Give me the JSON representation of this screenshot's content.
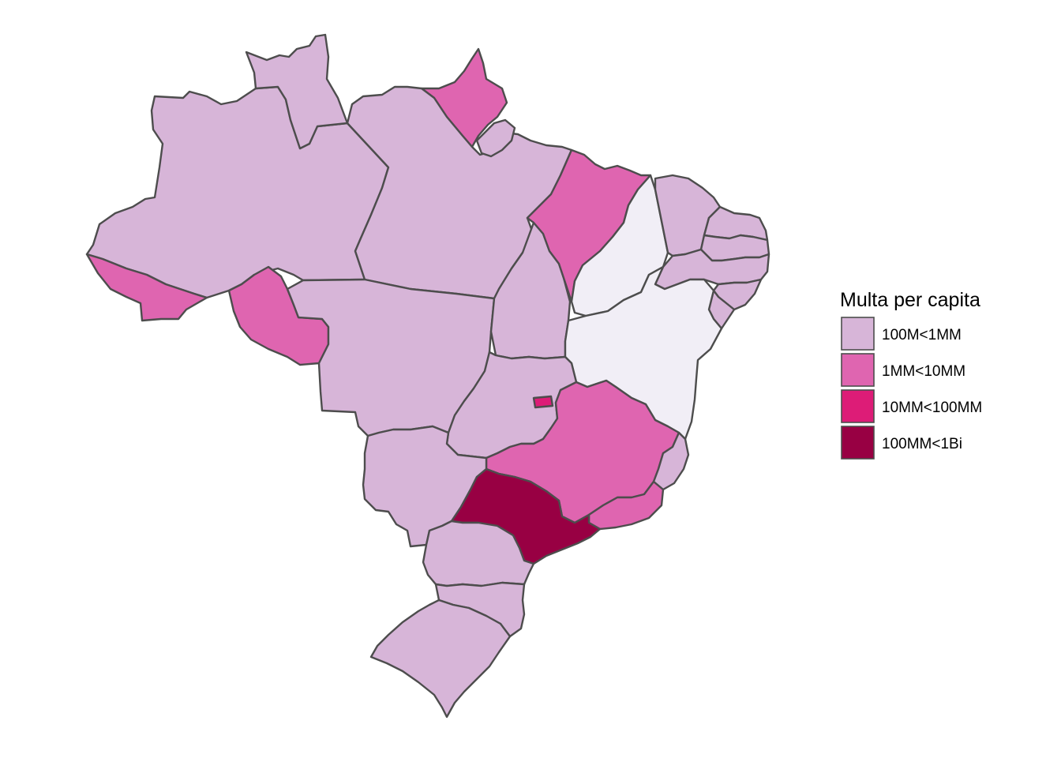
{
  "legend": {
    "title": "Multa per capita",
    "items": [
      {
        "label": "100M<1MM",
        "color": "#d7b5d8"
      },
      {
        "label": "1MM<10MM",
        "color": "#df65b0"
      },
      {
        "label": "10MM<100MM",
        "color": "#dd1c77"
      },
      {
        "label": "100MM<1Bi",
        "color": "#980043"
      }
    ]
  },
  "colors": {
    "no_class": "#f1eef6",
    "border": "#4d4d4d",
    "background": "#ffffff"
  },
  "regions": [
    {
      "id": "AM",
      "class": 0
    },
    {
      "id": "RR",
      "class": 0
    },
    {
      "id": "AP",
      "class": 1
    },
    {
      "id": "PA",
      "class": 0
    },
    {
      "id": "AC",
      "class": 1
    },
    {
      "id": "RO",
      "class": 1
    },
    {
      "id": "MT",
      "class": 0
    },
    {
      "id": "TO",
      "class": 0
    },
    {
      "id": "MA",
      "class": 1
    },
    {
      "id": "PI",
      "class": null
    },
    {
      "id": "CE",
      "class": 0
    },
    {
      "id": "RN",
      "class": 0
    },
    {
      "id": "PB",
      "class": 0
    },
    {
      "id": "PE",
      "class": 0
    },
    {
      "id": "AL",
      "class": 0
    },
    {
      "id": "SE",
      "class": 0
    },
    {
      "id": "BA",
      "class": null
    },
    {
      "id": "GO",
      "class": 0
    },
    {
      "id": "DF",
      "class": 2
    },
    {
      "id": "MG",
      "class": 1
    },
    {
      "id": "ES",
      "class": 0
    },
    {
      "id": "RJ",
      "class": 1
    },
    {
      "id": "MS",
      "class": 0
    },
    {
      "id": "SP",
      "class": 3
    },
    {
      "id": "PR",
      "class": 0
    },
    {
      "id": "SC",
      "class": 0
    },
    {
      "id": "RS",
      "class": 0
    }
  ]
}
